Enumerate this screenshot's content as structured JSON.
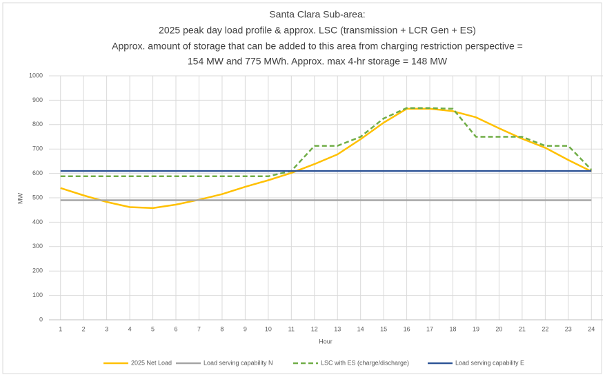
{
  "chart_data": {
    "type": "line",
    "title": [
      "Santa Clara Sub-area:",
      "2025 peak day load profile & approx. LSC (transmission + LCR Gen + ES)",
      "Approx. amount of storage that can be added to this area from charging restriction perspective =",
      "154 MW and 775 MWh. Approx. max 4-hr storage = 148 MW"
    ],
    "x_label": "Hour",
    "y_label": "MW",
    "categories": [
      "1",
      "2",
      "3",
      "4",
      "5",
      "6",
      "7",
      "8",
      "9",
      "10",
      "11",
      "12",
      "13",
      "14",
      "15",
      "16",
      "17",
      "18",
      "19",
      "20",
      "21",
      "22",
      "23",
      "24"
    ],
    "series": [
      {
        "name": "2025 Net Load",
        "color": "#ffc000",
        "dash": false,
        "values": [
          540,
          510,
          483,
          462,
          458,
          472,
          492,
          515,
          545,
          572,
          602,
          638,
          678,
          740,
          808,
          865,
          865,
          855,
          830,
          785,
          742,
          705,
          655,
          608
        ]
      },
      {
        "name": "Load serving capability N",
        "color": "#a5a5a5",
        "dash": false,
        "values": [
          490,
          490,
          490,
          490,
          490,
          490,
          490,
          490,
          490,
          490,
          490,
          490,
          490,
          490,
          490,
          490,
          490,
          490,
          490,
          490,
          490,
          490,
          490,
          490
        ]
      },
      {
        "name": "LSC with ES (charge/discharge)",
        "color": "#70ad47",
        "dash": true,
        "values": [
          588,
          588,
          588,
          588,
          588,
          588,
          588,
          588,
          588,
          588,
          610,
          713,
          713,
          750,
          825,
          868,
          868,
          865,
          750,
          750,
          750,
          713,
          713,
          615
        ]
      },
      {
        "name": "Load serving capability E",
        "color": "#2f5597",
        "dash": false,
        "values": [
          610,
          610,
          610,
          610,
          610,
          610,
          610,
          610,
          610,
          610,
          610,
          610,
          610,
          610,
          610,
          610,
          610,
          610,
          610,
          610,
          610,
          610,
          610,
          610
        ]
      }
    ],
    "ylim": [
      0,
      1000
    ],
    "yticks": [
      0,
      100,
      200,
      300,
      400,
      500,
      600,
      700,
      800,
      900,
      1000
    ],
    "grid": true,
    "legend": "bottom"
  }
}
